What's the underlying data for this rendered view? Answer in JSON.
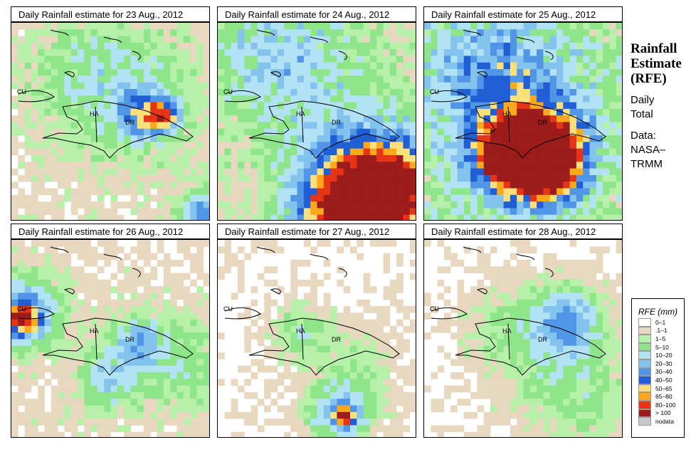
{
  "side": {
    "title_lines": [
      "Rainfall",
      "Estimate",
      "(RFE)"
    ],
    "period_lines": [
      "Daily",
      "Total"
    ],
    "source_lines": [
      "Data:",
      "NASA–",
      "TRMM"
    ]
  },
  "region_labels": {
    "cuba": "CU",
    "haiti": "HA",
    "dominican_republic": "DR"
  },
  "legend": {
    "title": "RFE (mm)",
    "classes": [
      {
        "label": "0–1",
        "color": "#ffffff"
      },
      {
        "label": ".1–1",
        "color": "#e8d8bf"
      },
      {
        "label": "1–5",
        "color": "#b7f0a9"
      },
      {
        "label": "5–10",
        "color": "#8fe68a"
      },
      {
        "label": "10–20",
        "color": "#b2e3f4"
      },
      {
        "label": "20–30",
        "color": "#84c3ed"
      },
      {
        "label": "30–40",
        "color": "#5095e6"
      },
      {
        "label": "40–50",
        "color": "#1f5ed5"
      },
      {
        "label": "50–65",
        "color": "#fbe07c"
      },
      {
        "label": "65–80",
        "color": "#fba81c"
      },
      {
        "label": "80–100",
        "color": "#e63417"
      },
      {
        "label": "> 100",
        "color": "#9b1c1b"
      },
      {
        "label": "nodata",
        "color": "#c8c8c8"
      }
    ]
  },
  "panels": [
    {
      "title": "Daily Rainfall estimate for  23 Aug., 2012",
      "date": "23 Aug., 2012"
    },
    {
      "title": "Daily Rainfall estimate for  24 Aug., 2012",
      "date": "24 Aug., 2012"
    },
    {
      "title": "Daily Rainfall estimate for  25 Aug., 2012",
      "date": "25 Aug., 2012"
    },
    {
      "title": "Daily Rainfall estimate for  26 Aug., 2012",
      "date": "26 Aug., 2012"
    },
    {
      "title": "Daily Rainfall estimate for  27 Aug., 2012",
      "date": "27 Aug., 2012"
    },
    {
      "title": "Daily Rainfall estimate for  28 Aug., 2012",
      "date": "28 Aug., 2012"
    }
  ]
}
